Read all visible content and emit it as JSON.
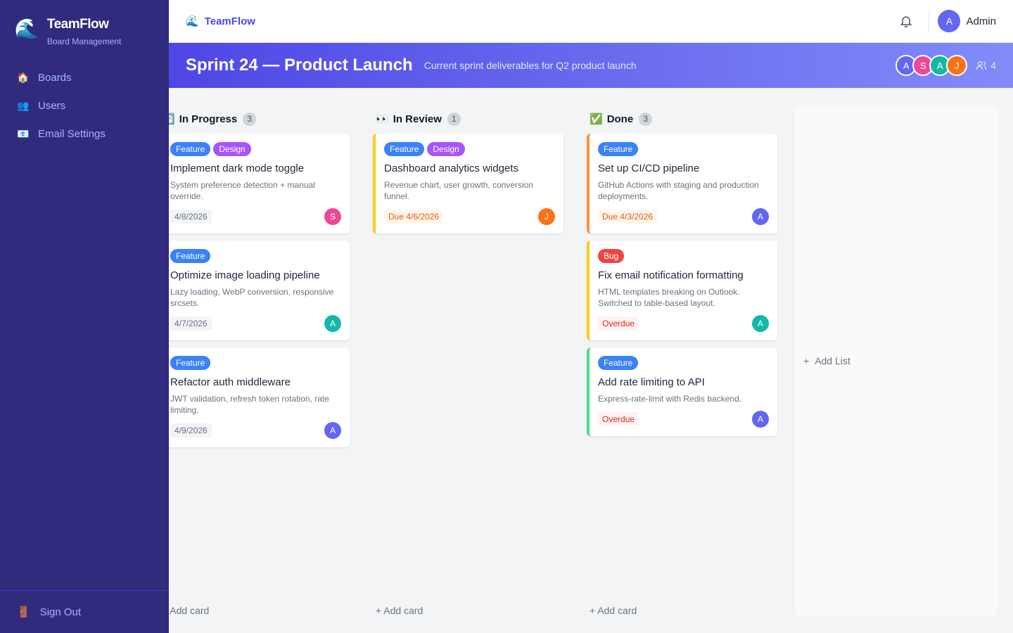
{
  "sidebar": {
    "brand": "TeamFlow",
    "subtitle": "Board Management",
    "logo": "🌊",
    "items": [
      {
        "icon": "🏠",
        "label": "Boards"
      },
      {
        "icon": "👥",
        "label": "Users"
      },
      {
        "icon": "📧",
        "label": "Email Settings"
      }
    ],
    "signout": {
      "icon": "🚪",
      "label": "Sign Out"
    }
  },
  "topbar": {
    "brand": "TeamFlow",
    "logo": "🌊",
    "user": "Admin",
    "user_initial": "A"
  },
  "board": {
    "title": "Sprint 24 — Product Launch",
    "description": "Current sprint deliverables for Q2 product launch",
    "members": [
      {
        "initial": "A",
        "color": "#6366f1"
      },
      {
        "initial": "S",
        "color": "#ec4899"
      },
      {
        "initial": "A",
        "color": "#14b8a6"
      },
      {
        "initial": "J",
        "color": "#f97316"
      }
    ],
    "member_count": "4"
  },
  "columns": [
    {
      "icon": "🔄",
      "title": "In Progress",
      "count": "3",
      "add": "+ Add card",
      "cards": [
        {
          "tags": [
            "Feature",
            "Design"
          ],
          "title": "Implement dark mode toggle",
          "desc": "System preference detection + manual override.",
          "date": "4/8/2026",
          "date_type": "normal",
          "assignee": "S",
          "assignee_color": "#ec4899"
        },
        {
          "tags": [
            "Feature"
          ],
          "title": "Optimize image loading pipeline",
          "desc": "Lazy loading, WebP conversion, responsive srcsets.",
          "date": "4/7/2026",
          "date_type": "normal",
          "assignee": "A",
          "assignee_color": "#14b8a6"
        },
        {
          "tags": [
            "Feature"
          ],
          "title": "Refactor auth middleware",
          "desc": "JWT validation, refresh token rotation, rate limiting.",
          "date": "4/9/2026",
          "date_type": "normal",
          "assignee": "A",
          "assignee_color": "#6366f1"
        }
      ]
    },
    {
      "icon": "👀",
      "title": "In Review",
      "count": "1",
      "add": "+ Add card",
      "cards": [
        {
          "tags": [
            "Feature",
            "Design"
          ],
          "title": "Dashboard analytics widgets",
          "desc": "Revenue chart, user growth, conversion funnel.",
          "date": "Due 4/6/2026",
          "date_type": "due",
          "assignee": "J",
          "assignee_color": "#f97316",
          "accent": "#facc15"
        }
      ]
    },
    {
      "icon": "✅",
      "title": "Done",
      "count": "3",
      "add": "+ Add card",
      "cards": [
        {
          "tags": [
            "Feature"
          ],
          "title": "Set up CI/CD pipeline",
          "desc": "GitHub Actions with staging and production deployments.",
          "date": "Due 4/3/2026",
          "date_type": "due",
          "assignee": "A",
          "assignee_color": "#6366f1",
          "accent": "#fb923c"
        },
        {
          "tags": [
            "Bug"
          ],
          "title": "Fix email notification formatting",
          "desc": "HTML templates breaking on Outlook. Switched to table-based layout.",
          "date": "Overdue",
          "date_type": "over",
          "assignee": "A",
          "assignee_color": "#14b8a6",
          "accent": "#facc15"
        },
        {
          "tags": [
            "Feature"
          ],
          "title": "Add rate limiting to API",
          "desc": "Express-rate-limit with Redis backend.",
          "date": "Overdue",
          "date_type": "over",
          "assignee": "A",
          "assignee_color": "#6366f1",
          "accent": "#4ade80"
        }
      ]
    }
  ],
  "add_list": "Add List"
}
